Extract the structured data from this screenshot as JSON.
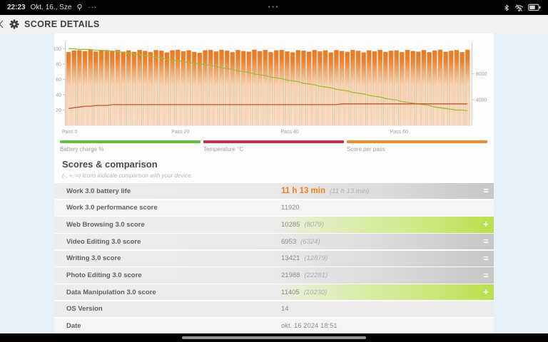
{
  "status_bar": {
    "time": "22:23",
    "date": "Okt. 16., Sze",
    "more_dots": "···",
    "center_dots": "•••",
    "icons": [
      "location-icon",
      "bluetooth-icon",
      "wifi-off-icon",
      "battery-icon"
    ]
  },
  "header": {
    "title": "SCORE DETAILS",
    "back_icon": "back-chevron",
    "logo_icon": "pcmark-logo"
  },
  "chart_data": {
    "type": "bar",
    "title": "",
    "x_ticks": [
      {
        "pass": 0,
        "label": "Pass 0"
      },
      {
        "pass": 20,
        "label": "Pass 20"
      },
      {
        "pass": 40,
        "label": "Pass 40"
      },
      {
        "pass": 60,
        "label": "Pass 60"
      }
    ],
    "left_axis": {
      "ticks": [
        20,
        40,
        60,
        80,
        100
      ],
      "max": 104
    },
    "right_axis": {
      "ticks": [
        4000,
        8000
      ],
      "max": 12400
    },
    "series": [
      {
        "name": "Score per pass",
        "type": "bar",
        "axis": "right",
        "values": [
          11393,
          11640,
          11671,
          11532,
          11749,
          11465,
          11717,
          11694,
          11522,
          11701,
          11460,
          11652,
          11421,
          11713,
          11566,
          11394,
          11690,
          11605,
          11327,
          11671,
          11733,
          11512,
          11672,
          11406,
          11269,
          11664,
          11727,
          11483,
          11735,
          11612,
          11365,
          11700,
          11532,
          11443,
          11757,
          11531,
          11698,
          11370,
          11643,
          11718,
          11491,
          11347,
          11675,
          11607,
          11444,
          11712,
          11507,
          11646,
          11322,
          11689,
          11555,
          11412,
          11730,
          11580,
          11338,
          11662,
          11498,
          11721,
          11404,
          11595,
          11650,
          11377,
          11708,
          11542,
          11463,
          11688,
          11359,
          11614,
          11745,
          11432,
          11576,
          11695,
          11368,
          11752
        ]
      },
      {
        "name": "Battery charge %",
        "type": "line",
        "axis": "left",
        "values": [
          100,
          100,
          99,
          99,
          99,
          98,
          98,
          97,
          97,
          96,
          95,
          94,
          93,
          92,
          91,
          90,
          89,
          88,
          86,
          85,
          84,
          83,
          82,
          81,
          80,
          79,
          78,
          77,
          75,
          74,
          73,
          71,
          70,
          69,
          67,
          66,
          65,
          63,
          62,
          61,
          59,
          58,
          57,
          55,
          54,
          53,
          51,
          50,
          49,
          47,
          46,
          45,
          43,
          42,
          41,
          39,
          38,
          37,
          35,
          34,
          33,
          31,
          30,
          29,
          28,
          27,
          26,
          24,
          23,
          22,
          21,
          20,
          20,
          19
        ]
      },
      {
        "name": "Temperature °C",
        "type": "line",
        "axis": "left",
        "values": [
          22,
          23,
          24,
          25,
          25,
          26,
          26,
          26,
          27,
          27,
          27,
          27,
          27,
          27,
          27,
          27,
          27,
          27,
          27,
          27,
          27,
          27,
          27,
          27,
          27,
          27,
          27,
          27,
          27,
          27,
          27,
          27,
          27,
          27,
          27,
          27,
          27,
          27,
          27,
          27,
          27,
          27,
          27,
          27,
          27,
          27,
          27,
          27,
          27,
          27,
          28,
          28,
          28,
          28,
          28,
          28,
          28,
          28,
          28,
          28,
          28,
          28,
          28,
          28,
          28,
          28,
          28,
          28,
          28,
          28,
          28,
          28,
          28,
          28
        ]
      }
    ],
    "colors": {
      "bar_top": "#e87a22",
      "bar_bottom": "#f8ddc4",
      "bar_stroke": "#eca269",
      "battery_line": "#9cbb3d",
      "temperature_line": "#c75231",
      "axis": "#c9c9c9",
      "tick_text": "#a0a0a0",
      "grid": "#efefef"
    }
  },
  "legend": [
    {
      "label": "Battery charge %",
      "color": "#65bf45"
    },
    {
      "label": "Temperature °C",
      "color": "#c13044"
    },
    {
      "label": "Score per pass",
      "color": "#f08c33"
    }
  ],
  "section": {
    "title": "Scores & comparison",
    "subtitle": "(-, +, =) Icons indicate comparison with your device."
  },
  "table": {
    "rows": [
      {
        "label": "Work 3.0 battery life",
        "value": "11 h 13 min",
        "comparison": "(11 h 13 min)",
        "badge": "=",
        "value_style": "orange",
        "row_style": "equal"
      },
      {
        "label": "Work 3.0 performance score",
        "value": "11920",
        "comparison": "",
        "badge": "",
        "value_style": "",
        "row_style": "plain-light"
      },
      {
        "label": "Web Browsing 3.0 score",
        "value": "10285",
        "comparison": "(8079)",
        "badge": "+",
        "value_style": "",
        "row_style": "plus"
      },
      {
        "label": "Video Editing 3.0 score",
        "value": "6953",
        "comparison": "(6324)",
        "badge": "=",
        "value_style": "",
        "row_style": "equal"
      },
      {
        "label": "Writing 3.0 score",
        "value": "13421",
        "comparison": "(12879)",
        "badge": "=",
        "value_style": "",
        "row_style": "equal"
      },
      {
        "label": "Photo Editing 3.0 score",
        "value": "21988",
        "comparison": "(22281)",
        "badge": "=",
        "value_style": "",
        "row_style": "equal"
      },
      {
        "label": "Data Manipulation 3.0 score",
        "value": "11405",
        "comparison": "(10230)",
        "badge": "+",
        "value_style": "",
        "row_style": "plus"
      },
      {
        "label": "OS Version",
        "value": "14",
        "comparison": "",
        "badge": "",
        "value_style": "",
        "row_style": "plain"
      },
      {
        "label": "Date",
        "value": "okt. 16 2024 18:51",
        "comparison": "",
        "badge": "",
        "value_style": "",
        "row_style": "plain-light"
      }
    ]
  },
  "colors": {
    "accent_orange": "#ee7f1f",
    "badge_green": "#b7e04c",
    "badge_gray": "#c6c6c6",
    "page_bg": "#e9f1f8",
    "card_bg": "#fdfdfd",
    "status_bar_bg": "#030303"
  }
}
